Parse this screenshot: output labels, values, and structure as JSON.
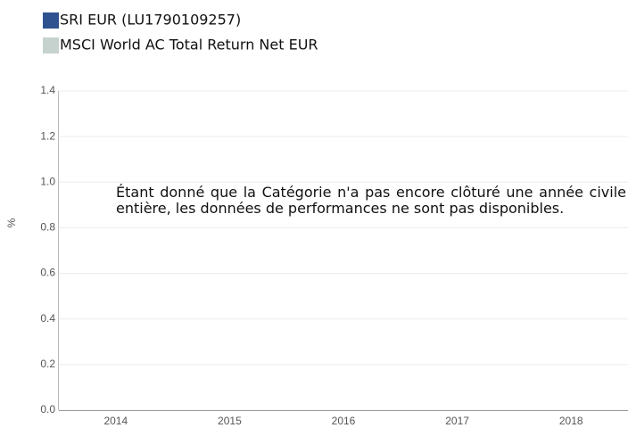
{
  "chart_data": {
    "type": "bar",
    "series": [
      {
        "name": "SRI EUR (LU1790109257)",
        "color": "#2e5290"
      },
      {
        "name": "MSCI World AC Total Return Net EUR",
        "color": "#c6d2cd"
      }
    ],
    "categories": [
      "2014",
      "2015",
      "2016",
      "2017",
      "2018"
    ],
    "ylabel": "%",
    "ylim": [
      0,
      1.4
    ],
    "yticks": [
      {
        "value": 0,
        "label": "0.0"
      },
      {
        "value": 0.2,
        "label": "0.2"
      },
      {
        "value": 0.4,
        "label": "0.4"
      },
      {
        "value": 0.6,
        "label": "0.6"
      },
      {
        "value": 0.8,
        "label": "0.8"
      },
      {
        "value": 1,
        "label": "1.0"
      },
      {
        "value": 1.2,
        "label": "1.2"
      },
      {
        "value": 1.4,
        "label": "1.4"
      }
    ],
    "grid": true,
    "annotation": "Étant donné que la Catégorie n'a pas encore clôturé une année civile entière, les données de performances ne sont pas disponibles."
  }
}
